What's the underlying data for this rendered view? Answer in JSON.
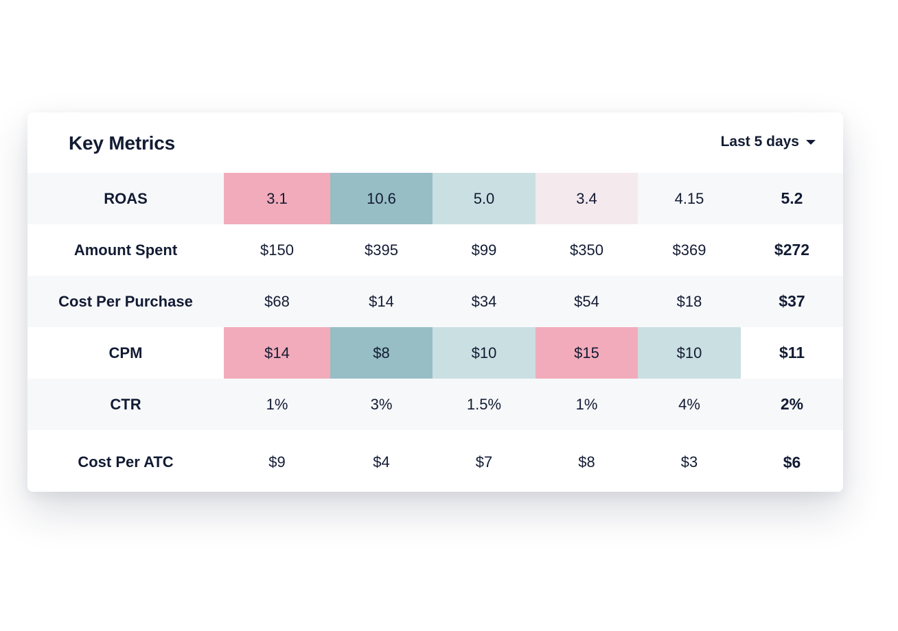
{
  "header": {
    "title": "Key Metrics",
    "range_label": "Last 5 days"
  },
  "colors": {
    "pink": "#f2abbb",
    "teal": "#97bec5",
    "light_teal": "#cadfe2",
    "pale_pink": "#f4e9ed",
    "text": "#121b33"
  },
  "rows": [
    {
      "label": "ROAS",
      "values": [
        "3.1",
        "10.6",
        "5.0",
        "3.4",
        "4.15"
      ],
      "average": "5.2",
      "highlights": [
        "pink",
        "teal",
        "light_teal",
        "pale_pink",
        "none"
      ]
    },
    {
      "label": "Amount Spent",
      "values": [
        "$150",
        "$395",
        "$99",
        "$350",
        "$369"
      ],
      "average": "$272",
      "highlights": [
        "none",
        "none",
        "none",
        "none",
        "none"
      ]
    },
    {
      "label": "Cost Per Purchase",
      "values": [
        "$68",
        "$14",
        "$34",
        "$54",
        "$18"
      ],
      "average": "$37",
      "highlights": [
        "none",
        "none",
        "none",
        "none",
        "none"
      ]
    },
    {
      "label": "CPM",
      "values": [
        "$14",
        "$8",
        "$10",
        "$15",
        "$10"
      ],
      "average": "$11",
      "highlights": [
        "pink",
        "teal",
        "light_teal",
        "pink",
        "light_teal"
      ]
    },
    {
      "label": "CTR",
      "values": [
        "1%",
        "3%",
        "1.5%",
        "1%",
        "4%"
      ],
      "average": "2%",
      "highlights": [
        "none",
        "none",
        "none",
        "none",
        "none"
      ]
    },
    {
      "label": "Cost Per ATC",
      "values": [
        "$9",
        "$4",
        "$7",
        "$8",
        "$3"
      ],
      "average": "$6",
      "highlights": [
        "none",
        "none",
        "none",
        "none",
        "none"
      ]
    }
  ]
}
